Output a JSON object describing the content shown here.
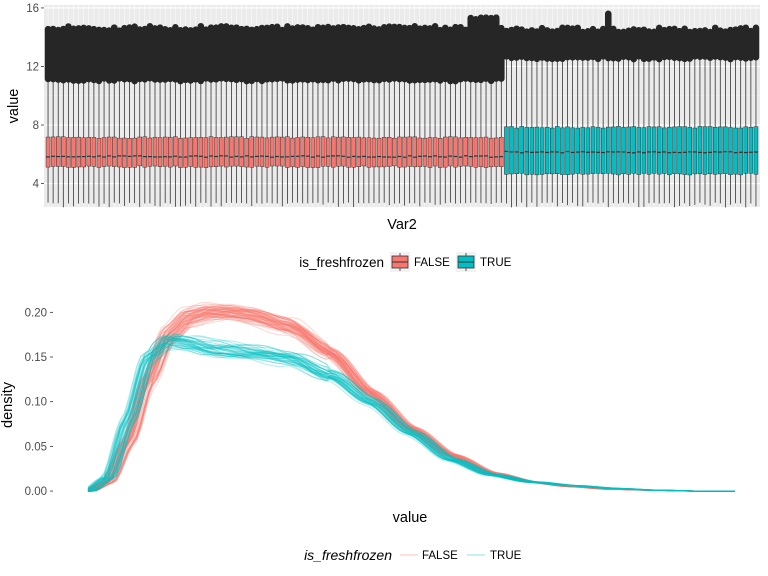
{
  "chart_data": [
    {
      "type": "boxplot",
      "title": "",
      "xlabel": "Var2",
      "ylabel": "value",
      "ylim": [
        2.4,
        16.2
      ],
      "y_ticks": [
        4,
        8,
        12,
        16
      ],
      "x_tick_labels_shown": false,
      "grid": true,
      "n_boxes": 140,
      "legend": {
        "title": "is_freshfrozen",
        "position": "bottom",
        "entries": [
          {
            "label": "FALSE",
            "color": "#F8766D"
          },
          {
            "label": "TRUE",
            "color": "#00BFC4"
          }
        ]
      },
      "groups": [
        {
          "name": "FALSE",
          "count": 90,
          "color": "#F8766D",
          "q1": 5.15,
          "median": 5.85,
          "q3": 7.15,
          "whisker_low": 2.7,
          "whisker_high": 11.1,
          "outlier_band": [
            11.1,
            14.6
          ]
        },
        {
          "name": "TRUE",
          "count": 50,
          "color": "#00BFC4",
          "q1": 4.65,
          "median": 6.15,
          "q3": 7.85,
          "whisker_low": 2.7,
          "whisker_high": 12.6,
          "outlier_band": [
            12.6,
            14.5
          ]
        }
      ]
    },
    {
      "type": "line",
      "title": "",
      "xlabel": "value",
      "ylabel": "density",
      "ylim": [
        -0.01,
        0.225
      ],
      "y_ticks": [
        0.0,
        0.05,
        0.1,
        0.15,
        0.2
      ],
      "y_tick_labels": [
        "0.00",
        "0.05",
        "0.10",
        "0.15",
        "0.20"
      ],
      "x_tick_labels_shown": false,
      "xlim": [
        0,
        16
      ],
      "grid": false,
      "legend": {
        "title": "is_freshfrozen",
        "position": "bottom",
        "entries": [
          {
            "label": "FALSE",
            "color": "#F8766D"
          },
          {
            "label": "TRUE",
            "color": "#00BFC4"
          }
        ]
      },
      "series": [
        {
          "name": "FALSE",
          "color": "#F8766D",
          "n_lines": 60,
          "x": [
            0,
            0.5,
            1.0,
            1.5,
            2.0,
            2.5,
            3.0,
            3.5,
            4.0,
            5.0,
            6.0,
            7.0,
            8.0,
            9.0,
            10.0,
            11.0,
            12.0,
            13.0,
            14.0,
            15.0,
            16.0
          ],
          "y": [
            0.0,
            0.01,
            0.055,
            0.125,
            0.175,
            0.195,
            0.2,
            0.2,
            0.197,
            0.185,
            0.155,
            0.11,
            0.07,
            0.04,
            0.02,
            0.01,
            0.005,
            0.002,
            0.001,
            0.0,
            0.0
          ]
        },
        {
          "name": "TRUE",
          "color": "#00BFC4",
          "n_lines": 40,
          "x": [
            0,
            0.5,
            1.0,
            1.5,
            2.0,
            2.5,
            3.0,
            3.5,
            4.0,
            5.0,
            6.0,
            7.0,
            8.0,
            9.0,
            10.0,
            11.0,
            12.0,
            13.0,
            14.0,
            15.0,
            16.0
          ],
          "y": [
            0.0,
            0.015,
            0.08,
            0.15,
            0.168,
            0.165,
            0.16,
            0.158,
            0.155,
            0.148,
            0.13,
            0.1,
            0.065,
            0.035,
            0.018,
            0.01,
            0.006,
            0.003,
            0.001,
            0.0,
            0.0
          ]
        }
      ]
    }
  ]
}
